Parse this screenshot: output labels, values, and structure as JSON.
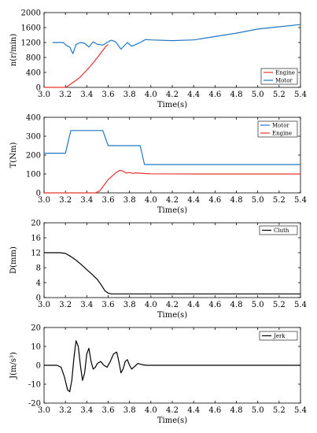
{
  "chart_data": [
    {
      "type": "line",
      "xlabel": "Time(s)",
      "ylabel": "n(r/min)",
      "xlim": [
        3.0,
        5.4
      ],
      "ylim": [
        0,
        2000
      ],
      "xticks": [
        "3.0",
        "3.2",
        "3.4",
        "3.6",
        "3.8",
        "4.0",
        "4.2",
        "4.4",
        "4.6",
        "4.8",
        "5.0",
        "5.2",
        "5.4"
      ],
      "yticks": [
        "0",
        "400",
        "800",
        "1200",
        "1600",
        "2000"
      ],
      "legend": {
        "position": "bottom-right",
        "entries": [
          "Engine",
          "Motor"
        ]
      },
      "series": [
        {
          "name": "Engine",
          "color": "#e8322e",
          "x": [
            3.0,
            3.2,
            3.23,
            3.26,
            3.3,
            3.34,
            3.38,
            3.42,
            3.46,
            3.5,
            3.54,
            3.58,
            3.6
          ],
          "y": [
            0,
            0,
            50,
            110,
            190,
            280,
            400,
            520,
            660,
            800,
            950,
            1100,
            1150
          ]
        },
        {
          "name": "Motor",
          "color": "#1f77c4",
          "x": [
            3.08,
            3.18,
            3.21,
            3.24,
            3.27,
            3.3,
            3.34,
            3.38,
            3.42,
            3.46,
            3.5,
            3.55,
            3.6,
            3.63,
            3.67,
            3.72,
            3.78,
            3.82,
            3.86,
            3.9,
            3.95,
            4.0,
            4.2,
            4.4,
            4.6,
            4.8,
            5.0,
            5.2,
            5.4
          ],
          "y": [
            1200,
            1200,
            1120,
            1080,
            900,
            1150,
            1200,
            1180,
            1080,
            1220,
            1150,
            1130,
            1220,
            1260,
            1220,
            1020,
            1200,
            1100,
            1150,
            1200,
            1280,
            1270,
            1250,
            1270,
            1360,
            1450,
            1560,
            1620,
            1680
          ]
        }
      ]
    },
    {
      "type": "line",
      "xlabel": "Time(s)",
      "ylabel": "T(Nm)",
      "xlim": [
        3.0,
        5.4
      ],
      "ylim": [
        0,
        400
      ],
      "xticks": [
        "3.0",
        "3.2",
        "3.4",
        "3.6",
        "3.8",
        "4.0",
        "4.2",
        "4.4",
        "4.6",
        "4.8",
        "5.0",
        "5.2",
        "5.4"
      ],
      "yticks": [
        "0",
        "100",
        "200",
        "300",
        "400"
      ],
      "legend": {
        "position": "top-right",
        "entries": [
          "Motor",
          "Engine"
        ]
      },
      "series": [
        {
          "name": "Motor",
          "color": "#1f77c4",
          "x": [
            3.0,
            3.2,
            3.25,
            3.55,
            3.6,
            3.9,
            3.94,
            5.4
          ],
          "y": [
            210,
            210,
            330,
            330,
            250,
            250,
            150,
            150
          ]
        },
        {
          "name": "Engine",
          "color": "#e8322e",
          "x": [
            3.0,
            3.48,
            3.52,
            3.56,
            3.6,
            3.64,
            3.68,
            3.71,
            3.74,
            3.77,
            3.8,
            3.83,
            3.86,
            3.9,
            3.95,
            4.0,
            4.5,
            5.0,
            5.4
          ],
          "y": [
            0,
            0,
            10,
            40,
            70,
            90,
            110,
            120,
            115,
            105,
            108,
            103,
            106,
            104,
            102,
            101,
            100,
            100,
            100
          ]
        }
      ]
    },
    {
      "type": "line",
      "xlabel": "Time(s)",
      "ylabel": "D(mm)",
      "xlim": [
        3.0,
        5.4
      ],
      "ylim": [
        0,
        20
      ],
      "xticks": [
        "3.0",
        "3.2",
        "3.4",
        "3.6",
        "3.8",
        "4.0",
        "4.2",
        "4.4",
        "4.6",
        "4.8",
        "5.0",
        "5.2",
        "5.4"
      ],
      "yticks": [
        "0",
        "4",
        "8",
        "12",
        "16",
        "20"
      ],
      "legend": {
        "position": "top-right",
        "entries": [
          "Cluth"
        ]
      },
      "series": [
        {
          "name": "Cluth",
          "color": "#000000",
          "x": [
            3.0,
            3.15,
            3.2,
            3.25,
            3.3,
            3.35,
            3.4,
            3.45,
            3.5,
            3.54,
            3.57,
            3.6,
            3.63,
            3.7,
            4.0,
            5.4
          ],
          "y": [
            12,
            12,
            11.8,
            11.0,
            10.0,
            8.8,
            7.5,
            6.2,
            4.8,
            3.2,
            1.8,
            1.2,
            1.0,
            1.0,
            1.0,
            1.0
          ]
        }
      ]
    },
    {
      "type": "line",
      "xlabel": "Time(s)",
      "ylabel": "J(m/s³)",
      "xlim": [
        3.0,
        5.4
      ],
      "ylim": [
        -20,
        20
      ],
      "xticks": [
        "3.0",
        "3.2",
        "3.4",
        "3.6",
        "3.8",
        "4.0",
        "4.2",
        "4.4",
        "4.6",
        "4.8",
        "5.0",
        "5.2",
        "5.4"
      ],
      "yticks": [
        "-20",
        "-10",
        "0",
        "10",
        "20"
      ],
      "legend": {
        "position": "top-right",
        "entries": [
          "Jerk"
        ]
      },
      "series": [
        {
          "name": "Jerk",
          "color": "#000000",
          "x": [
            3.0,
            3.12,
            3.16,
            3.19,
            3.22,
            3.24,
            3.26,
            3.28,
            3.3,
            3.32,
            3.34,
            3.36,
            3.38,
            3.4,
            3.42,
            3.44,
            3.46,
            3.48,
            3.5,
            3.53,
            3.56,
            3.59,
            3.62,
            3.65,
            3.68,
            3.7,
            3.72,
            3.74,
            3.76,
            3.78,
            3.8,
            3.82,
            3.84,
            3.86,
            3.88,
            3.9,
            3.93,
            3.96,
            4.0,
            4.2,
            5.4
          ],
          "y": [
            0,
            0,
            -1,
            -6,
            -13,
            -14,
            -8,
            4,
            13,
            10,
            0,
            -8,
            -4,
            6,
            9,
            2,
            -2,
            -1,
            1,
            2,
            0,
            -1,
            2,
            6,
            7,
            2,
            -4,
            -2,
            2,
            3,
            0,
            -2,
            -1,
            0,
            1,
            0.6,
            0.2,
            0,
            0,
            0,
            0
          ]
        }
      ]
    }
  ]
}
